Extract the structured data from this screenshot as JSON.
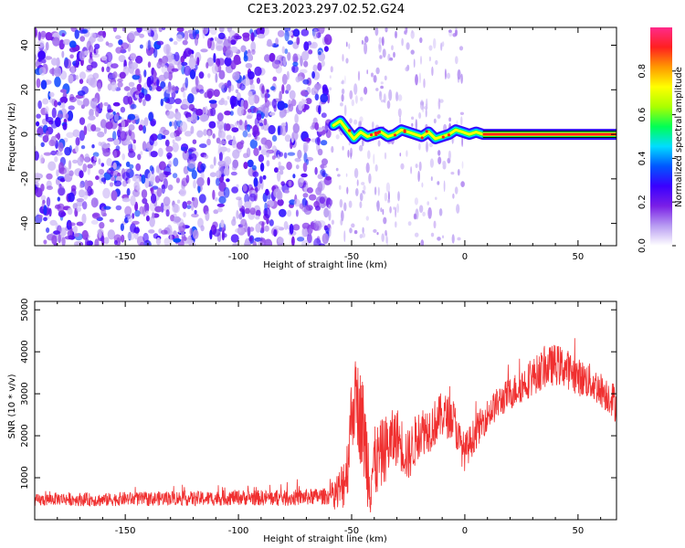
{
  "title": "C2E3.2023.297.02.52.G24",
  "chart_data": [
    {
      "type": "heatmap",
      "title": "C2E3.2023.297.02.52.G24",
      "xlabel": "Height of straight line (km)",
      "ylabel": "Frequency (Hz)",
      "xlim": [
        -190,
        67
      ],
      "ylim": [
        -50,
        48
      ],
      "x_ticks": [
        -150,
        -100,
        -50,
        0,
        50
      ],
      "y_ticks": [
        -40,
        -20,
        0,
        20,
        40
      ],
      "colorbar": {
        "label": "Normalized spectral amplitude",
        "range": [
          0.0,
          1.0
        ],
        "ticks": [
          0.0,
          0.2,
          0.4,
          0.6,
          0.8
        ],
        "colormap": [
          "#ffffff",
          "#b89cf2",
          "#7a1fe6",
          "#3a00ff",
          "#0057ff",
          "#00ddff",
          "#00ff55",
          "#aaff00",
          "#ffff00",
          "#ff9900",
          "#ff2020",
          "#ff2a8a"
        ]
      },
      "noise_region": {
        "x": [
          -190,
          -60
        ],
        "amplitude": [
          0.05,
          0.35
        ]
      },
      "signal_trace": {
        "x": [
          -58,
          -55,
          -52,
          -49,
          -46,
          -43,
          -40,
          -37,
          -34,
          -31,
          -28,
          -25,
          -22,
          -19,
          -16,
          -13,
          -10,
          -7,
          -4,
          -1,
          2,
          5,
          8,
          12,
          20,
          30,
          40,
          50,
          60,
          67
        ],
        "y": [
          4,
          6,
          2,
          -2,
          1,
          -1,
          0,
          1,
          -1,
          0,
          2,
          1,
          0,
          -1,
          1,
          -2,
          -1,
          0,
          2,
          1,
          0,
          1,
          0,
          0,
          0,
          0,
          0,
          0,
          0,
          0
        ]
      }
    },
    {
      "type": "line",
      "xlabel": "Height of straight line (km)",
      "ylabel": "SNR (10 * v/v)",
      "xlim": [
        -190,
        67
      ],
      "ylim": [
        0,
        5200
      ],
      "x_ticks": [
        -150,
        -100,
        -50,
        0,
        50
      ],
      "y_ticks": [
        1000,
        2000,
        3000,
        4000,
        5000
      ],
      "color": "#f03030",
      "series": [
        {
          "x": [
            -190,
            -180,
            -170,
            -160,
            -150,
            -140,
            -130,
            -120,
            -110,
            -100,
            -90,
            -80,
            -70,
            -60,
            -55,
            -52,
            -50,
            -48,
            -45,
            -42,
            -40,
            -35,
            -30,
            -25,
            -20,
            -15,
            -10,
            -5,
            -2,
            0,
            5,
            10,
            15,
            20,
            25,
            30,
            35,
            40,
            45,
            50,
            55,
            60,
            65,
            67
          ],
          "y": [
            450,
            500,
            480,
            470,
            500,
            490,
            520,
            500,
            510,
            530,
            520,
            510,
            540,
            560,
            700,
            1200,
            2600,
            2900,
            2200,
            1000,
            1300,
            1700,
            2000,
            1500,
            2100,
            2200,
            2500,
            2400,
            1800,
            1600,
            2100,
            2500,
            2800,
            3000,
            3200,
            3400,
            3600,
            3700,
            3600,
            3400,
            3300,
            3100,
            2900,
            2700
          ]
        }
      ],
      "noise_amplitude": [
        [
          -190,
          150
        ],
        [
          -60,
          200
        ],
        [
          -52,
          800
        ],
        [
          -45,
          1200
        ],
        [
          -40,
          900
        ],
        [
          -30,
          700
        ],
        [
          -20,
          600
        ],
        [
          -10,
          550
        ],
        [
          0,
          450
        ],
        [
          10,
          380
        ],
        [
          20,
          400
        ],
        [
          30,
          450
        ],
        [
          40,
          500
        ],
        [
          50,
          450
        ],
        [
          60,
          420
        ],
        [
          67,
          450
        ]
      ]
    }
  ]
}
